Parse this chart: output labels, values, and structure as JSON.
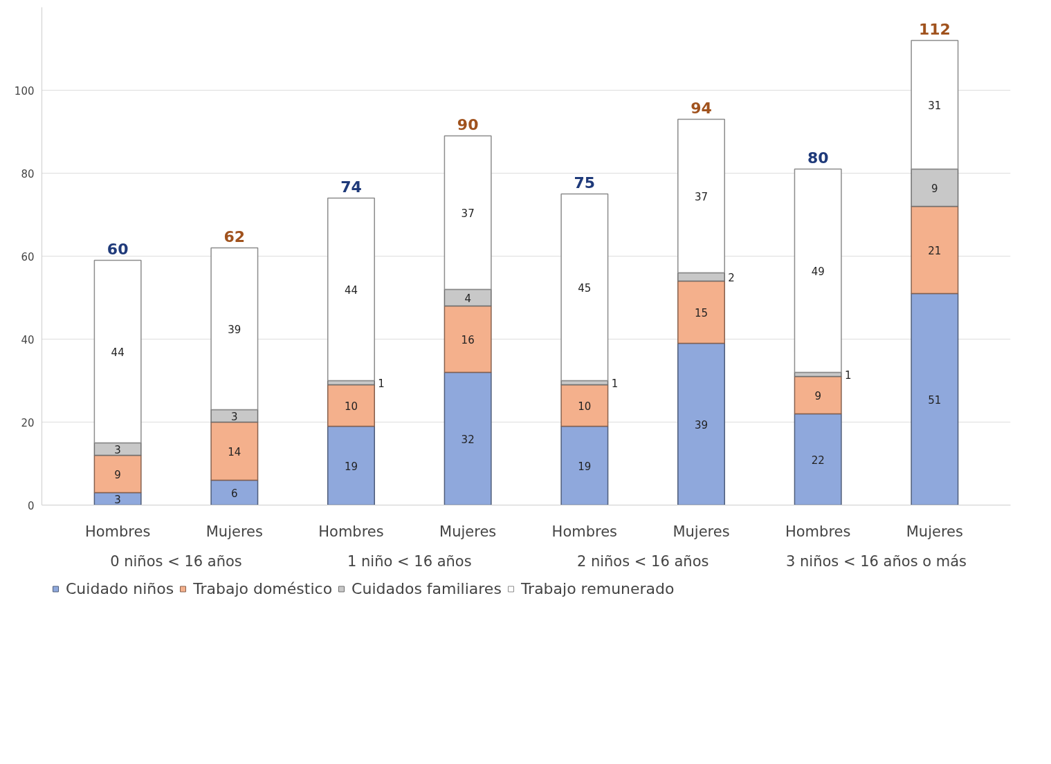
{
  "chart_data": {
    "type": "bar",
    "stacked": true,
    "categories": [
      "Hombres",
      "Mujeres",
      "Hombres",
      "Mujeres",
      "Hombres",
      "Mujeres",
      "Hombres",
      "Mujeres"
    ],
    "annotations": [
      "0 niños < 16 años",
      "1 niño < 16 años",
      "2 niños < 16 años",
      "3 niños < 16 años o más"
    ],
    "series": [
      {
        "name": "Cuidado niños",
        "color": "#8fa8dc",
        "values": [
          3,
          6,
          19,
          32,
          19,
          39,
          22,
          51
        ]
      },
      {
        "name": "Trabajo doméstico",
        "color": "#f4b08c",
        "values": [
          9,
          14,
          10,
          16,
          10,
          15,
          9,
          21
        ]
      },
      {
        "name": "Cuidados familiares",
        "color": "#c8c8c8",
        "values": [
          3,
          3,
          1,
          4,
          1,
          2,
          1,
          9
        ]
      },
      {
        "name": "Trabajo remunerado",
        "color": "#ffffff",
        "values": [
          44,
          39,
          44,
          37,
          45,
          37,
          49,
          31
        ]
      }
    ],
    "totals": [
      "60",
      "62",
      "74",
      "90",
      "75",
      "94",
      "80",
      "112"
    ],
    "ylim": [
      0,
      120
    ],
    "yticks": [
      0,
      20,
      40,
      60,
      80,
      100
    ],
    "grid": "y",
    "legend": "bottom",
    "data_labels": true
  }
}
